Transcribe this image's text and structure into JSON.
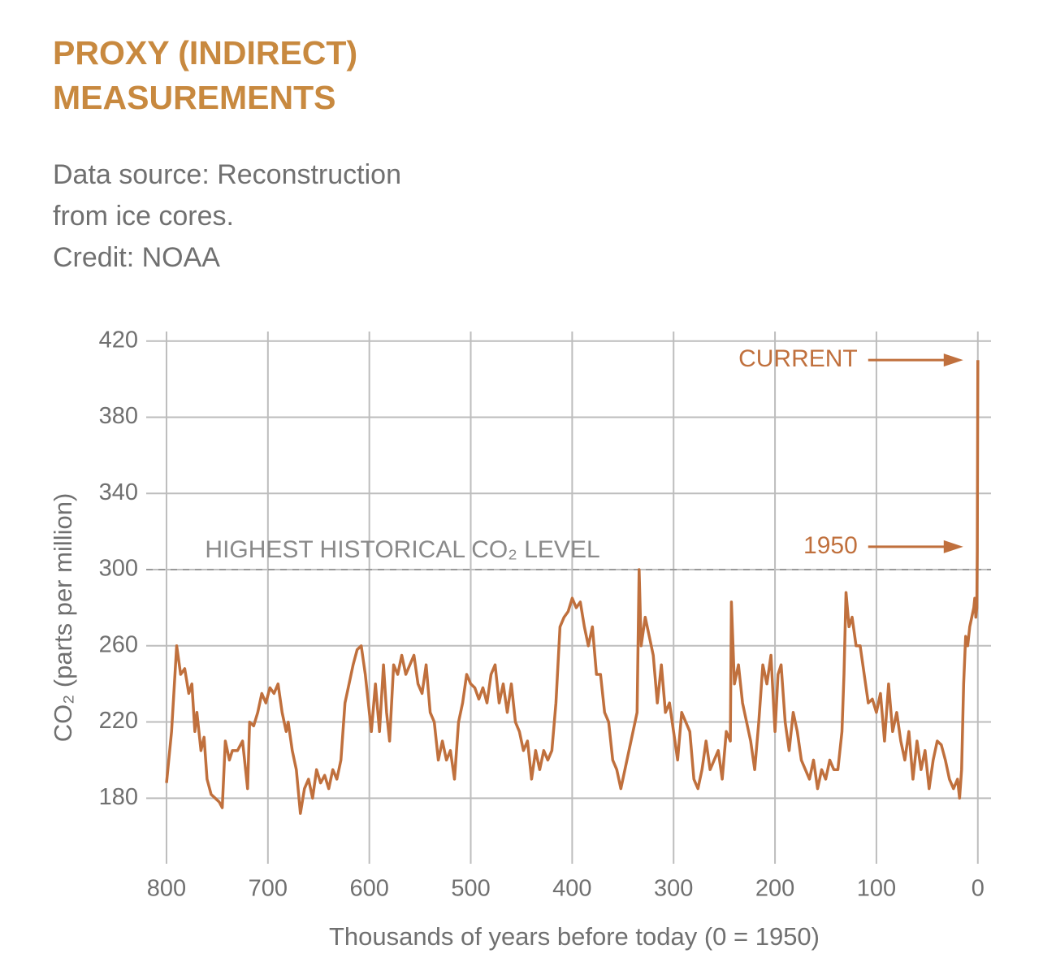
{
  "chart_data": {
    "type": "line",
    "title": "PROXY (INDIRECT) MEASUREMENTS",
    "subtitle": [
      "Data source: Reconstruction",
      "from ice cores.",
      "Credit: NOAA"
    ],
    "xlabel": "Thousands of years before today (0 = 1950)",
    "ylabel": "CO₂ (parts per million)",
    "xlim": [
      820,
      -13
    ],
    "ylim": [
      149,
      425
    ],
    "xticks": [
      800,
      700,
      600,
      500,
      400,
      300,
      200,
      100,
      0
    ],
    "yticks": [
      180,
      220,
      260,
      300,
      340,
      380,
      420
    ],
    "grid": true,
    "reference_line": {
      "text": "HIGHEST HISTORICAL CO₂ LEVEL",
      "x": 762,
      "y": 300
    },
    "annotations": [
      {
        "text": "CURRENT",
        "x": 0,
        "y": 410
      },
      {
        "text": "1950",
        "x": 0,
        "y": 312
      }
    ],
    "series": [
      {
        "color": "#c0703d",
        "x": [
          800,
          795,
          790,
          786,
          782,
          778,
          775,
          772,
          770,
          766,
          763,
          760,
          756,
          752,
          748,
          745,
          742,
          738,
          735,
          730,
          725,
          720,
          718,
          714,
          710,
          706,
          702,
          698,
          694,
          690,
          686,
          682,
          680,
          676,
          672,
          668,
          664,
          660,
          656,
          652,
          648,
          644,
          640,
          636,
          632,
          628,
          624,
          620,
          616,
          612,
          608,
          604,
          600,
          598,
          594,
          590,
          586,
          583,
          580,
          576,
          572,
          568,
          564,
          560,
          556,
          552,
          548,
          544,
          540,
          536,
          532,
          528,
          524,
          520,
          516,
          512,
          508,
          504,
          500,
          496,
          492,
          488,
          484,
          480,
          476,
          472,
          468,
          464,
          460,
          456,
          452,
          448,
          444,
          440,
          436,
          432,
          428,
          424,
          420,
          416,
          412,
          408,
          404,
          400,
          396,
          392,
          388,
          384,
          380,
          376,
          372,
          368,
          364,
          360,
          356,
          352,
          348,
          344,
          340,
          336,
          334,
          332,
          328,
          324,
          320,
          316,
          312,
          308,
          304,
          300,
          296,
          292,
          288,
          284,
          280,
          276,
          272,
          268,
          264,
          260,
          256,
          252,
          248,
          244,
          243,
          240,
          236,
          232,
          228,
          224,
          220,
          216,
          212,
          208,
          204,
          200,
          197,
          194,
          190,
          186,
          182,
          178,
          174,
          170,
          166,
          162,
          158,
          154,
          150,
          146,
          142,
          138,
          134,
          132,
          130,
          127,
          124,
          120,
          116,
          112,
          108,
          104,
          100,
          96,
          92,
          88,
          84,
          80,
          76,
          72,
          68,
          64,
          60,
          56,
          52,
          48,
          44,
          40,
          36,
          32,
          28,
          24,
          20,
          18,
          16,
          14,
          12,
          10,
          8,
          6,
          4,
          3,
          2,
          1,
          0.5,
          0
        ],
        "values": [
          188,
          215,
          260,
          245,
          248,
          235,
          240,
          215,
          225,
          205,
          212,
          190,
          182,
          180,
          178,
          175,
          210,
          200,
          205,
          205,
          210,
          185,
          220,
          218,
          225,
          235,
          230,
          238,
          235,
          240,
          225,
          215,
          220,
          205,
          195,
          172,
          185,
          190,
          180,
          195,
          188,
          192,
          185,
          195,
          190,
          200,
          230,
          240,
          250,
          258,
          260,
          245,
          225,
          215,
          240,
          215,
          250,
          225,
          210,
          250,
          245,
          255,
          245,
          250,
          255,
          240,
          235,
          250,
          225,
          220,
          200,
          210,
          200,
          205,
          190,
          220,
          230,
          245,
          240,
          238,
          232,
          238,
          230,
          245,
          250,
          230,
          240,
          225,
          240,
          220,
          215,
          205,
          210,
          190,
          205,
          195,
          205,
          200,
          205,
          230,
          270,
          275,
          278,
          285,
          280,
          283,
          270,
          260,
          270,
          245,
          245,
          225,
          220,
          200,
          195,
          185,
          195,
          205,
          215,
          225,
          300,
          260,
          275,
          265,
          255,
          230,
          250,
          225,
          230,
          215,
          200,
          225,
          220,
          215,
          190,
          185,
          195,
          210,
          195,
          200,
          205,
          190,
          215,
          210,
          283,
          240,
          250,
          230,
          220,
          210,
          195,
          220,
          250,
          240,
          255,
          215,
          245,
          250,
          220,
          205,
          225,
          215,
          200,
          195,
          190,
          200,
          185,
          195,
          190,
          200,
          195,
          195,
          215,
          245,
          288,
          270,
          275,
          260,
          260,
          245,
          230,
          232,
          225,
          235,
          210,
          240,
          215,
          225,
          210,
          200,
          215,
          190,
          210,
          195,
          205,
          185,
          200,
          210,
          208,
          200,
          190,
          185,
          190,
          180,
          195,
          240,
          265,
          260,
          270,
          275,
          280,
          285,
          275,
          280,
          310,
          410
        ]
      }
    ]
  }
}
